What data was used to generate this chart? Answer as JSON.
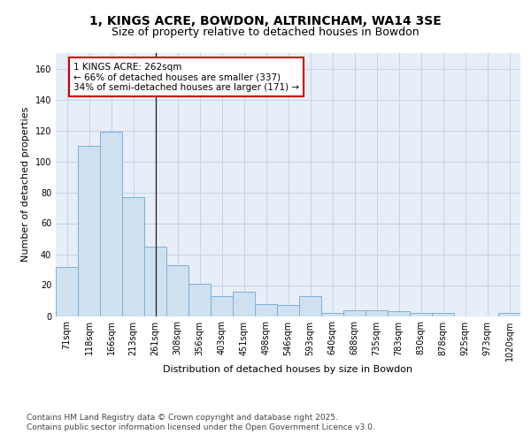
{
  "title": "1, KINGS ACRE, BOWDON, ALTRINCHAM, WA14 3SE",
  "subtitle": "Size of property relative to detached houses in Bowdon",
  "xlabel": "Distribution of detached houses by size in Bowdon",
  "ylabel": "Number of detached properties",
  "categories": [
    "71sqm",
    "118sqm",
    "166sqm",
    "213sqm",
    "261sqm",
    "308sqm",
    "356sqm",
    "403sqm",
    "451sqm",
    "498sqm",
    "546sqm",
    "593sqm",
    "640sqm",
    "688sqm",
    "735sqm",
    "783sqm",
    "830sqm",
    "878sqm",
    "925sqm",
    "973sqm",
    "1020sqm"
  ],
  "values": [
    32,
    110,
    119,
    77,
    45,
    33,
    21,
    13,
    16,
    8,
    7,
    13,
    2,
    4,
    4,
    3,
    2,
    2,
    0,
    0,
    2
  ],
  "bar_color": "#cfe0f0",
  "bar_edge_color": "#7ab0d8",
  "bar_edge_width": 0.7,
  "highlight_bar_index": 4,
  "highlight_line_color": "#1a1a1a",
  "grid_color": "#c8d4e8",
  "background_color": "#e8eef8",
  "annotation_text": "1 KINGS ACRE: 262sqm\n← 66% of detached houses are smaller (337)\n34% of semi-detached houses are larger (171) →",
  "annotation_box_facecolor": "#ffffff",
  "annotation_box_edgecolor": "#cc0000",
  "ylim": [
    0,
    170
  ],
  "yticks": [
    0,
    20,
    40,
    60,
    80,
    100,
    120,
    140,
    160
  ],
  "footer_text": "Contains HM Land Registry data © Crown copyright and database right 2025.\nContains public sector information licensed under the Open Government Licence v3.0.",
  "title_fontsize": 10,
  "subtitle_fontsize": 9,
  "axis_label_fontsize": 8,
  "tick_fontsize": 7,
  "annotation_fontsize": 7.5,
  "footer_fontsize": 6.5
}
